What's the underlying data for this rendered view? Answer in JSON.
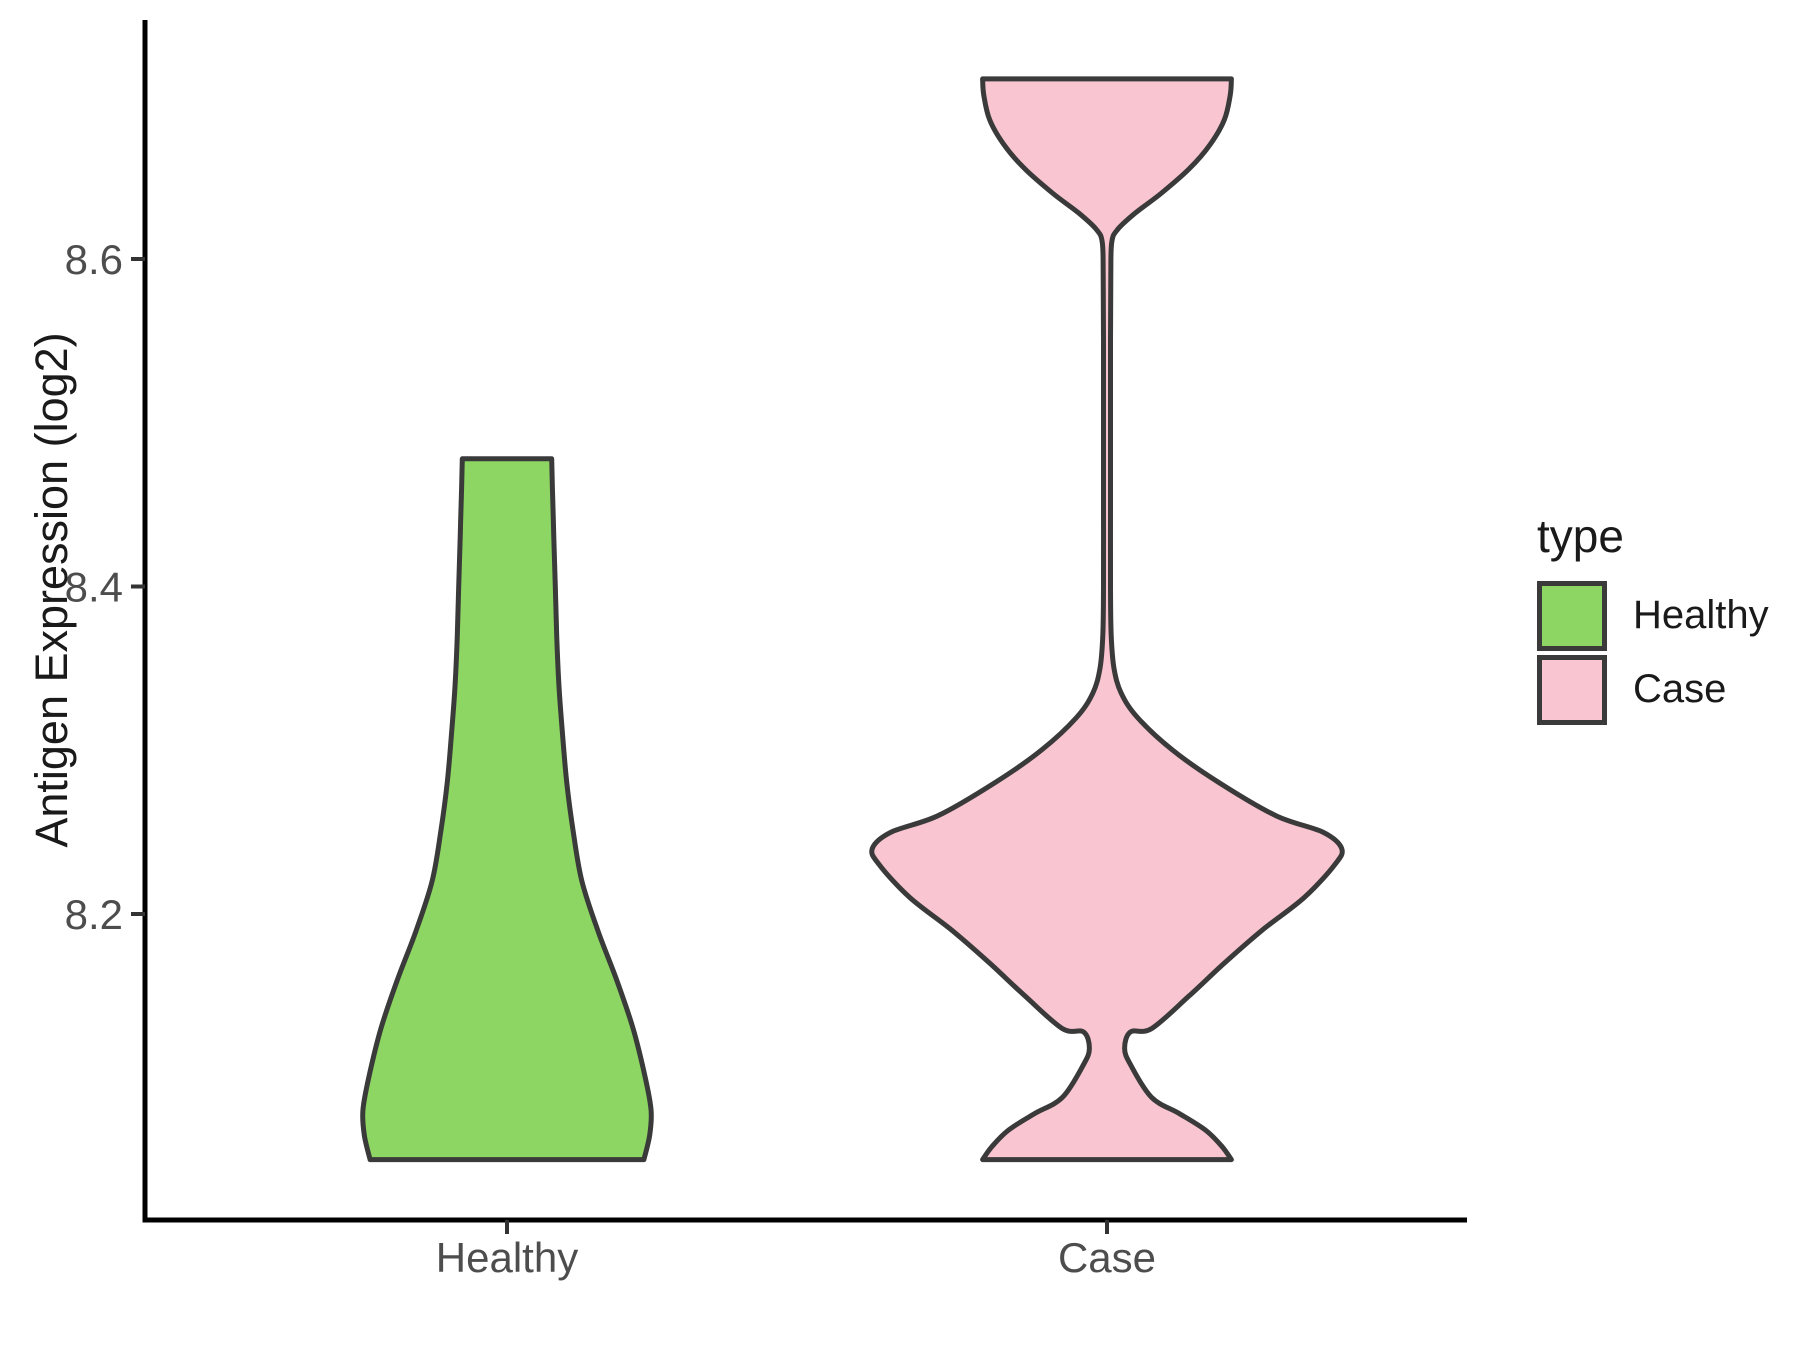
{
  "chart_data": {
    "type": "violin",
    "title": "",
    "ylabel": "Antigen Expression (log2)",
    "xlabel": "",
    "categories": [
      "Healthy",
      "Case"
    ],
    "y_ticks": [
      8.2,
      8.4,
      8.6
    ],
    "y_tick_labels": [
      "8.2",
      "8.4",
      "8.6"
    ],
    "ylim": [
      8.01,
      8.75
    ],
    "grid": false,
    "legend_position": "right",
    "legend_title": "type",
    "series": [
      {
        "name": "Healthy",
        "fill": "#8DD663",
        "outline": "#3A3A3A",
        "value_range": [
          8.05,
          8.48
        ],
        "peak_value": 8.08,
        "max_halfwidth_frac": 0.218,
        "profile": [
          [
            8.478,
            0.31
          ],
          [
            8.46,
            0.315
          ],
          [
            8.43,
            0.325
          ],
          [
            8.4,
            0.335
          ],
          [
            8.37,
            0.345
          ],
          [
            8.34,
            0.36
          ],
          [
            8.31,
            0.385
          ],
          [
            8.28,
            0.415
          ],
          [
            8.25,
            0.46
          ],
          [
            8.22,
            0.52
          ],
          [
            8.19,
            0.63
          ],
          [
            8.16,
            0.76
          ],
          [
            8.13,
            0.875
          ],
          [
            8.1,
            0.96
          ],
          [
            8.08,
            1.0
          ],
          [
            8.065,
            0.99
          ],
          [
            8.05,
            0.95
          ]
        ]
      },
      {
        "name": "Case",
        "fill": "#F8C5D0",
        "outline": "#3A3A3A",
        "value_range": [
          8.05,
          8.71
        ],
        "peak_value": 8.24,
        "max_halfwidth_frac": 0.355,
        "profile": [
          [
            8.71,
            0.53
          ],
          [
            8.7,
            0.525
          ],
          [
            8.685,
            0.5
          ],
          [
            8.67,
            0.44
          ],
          [
            8.655,
            0.35
          ],
          [
            8.64,
            0.23
          ],
          [
            8.628,
            0.12
          ],
          [
            8.618,
            0.045
          ],
          [
            8.61,
            0.02
          ],
          [
            8.59,
            0.016
          ],
          [
            8.55,
            0.015
          ],
          [
            8.5,
            0.015
          ],
          [
            8.45,
            0.015
          ],
          [
            8.4,
            0.015
          ],
          [
            8.37,
            0.018
          ],
          [
            8.35,
            0.03
          ],
          [
            8.335,
            0.06
          ],
          [
            8.32,
            0.13
          ],
          [
            8.3,
            0.28
          ],
          [
            8.28,
            0.48
          ],
          [
            8.26,
            0.72
          ],
          [
            8.25,
            0.92
          ],
          [
            8.24,
            1.0
          ],
          [
            8.23,
            0.97
          ],
          [
            8.21,
            0.84
          ],
          [
            8.19,
            0.66
          ],
          [
            8.17,
            0.5
          ],
          [
            8.15,
            0.35
          ],
          [
            8.13,
            0.19
          ],
          [
            8.128,
            0.1
          ],
          [
            8.118,
            0.075
          ],
          [
            8.108,
            0.1
          ],
          [
            8.088,
            0.19
          ],
          [
            8.078,
            0.31
          ],
          [
            8.068,
            0.42
          ],
          [
            8.058,
            0.49
          ],
          [
            8.05,
            0.53
          ]
        ]
      }
    ]
  },
  "legend": {
    "title": "type",
    "items": [
      {
        "label": "Healthy",
        "color": "#8DD663"
      },
      {
        "label": "Case",
        "color": "#F8C5D0"
      }
    ]
  },
  "axes": {
    "y_title": "Antigen Expression (log2)",
    "y_tick_labels": [
      "8.2",
      "8.4",
      "8.6"
    ],
    "x_labels": [
      "Healthy",
      "Case"
    ]
  },
  "colors": {
    "background": "#FFFFFF",
    "axis_line": "#000000",
    "tick": "#333333",
    "tick_label": "#4D4D4D",
    "text": "#1A1A1A"
  }
}
